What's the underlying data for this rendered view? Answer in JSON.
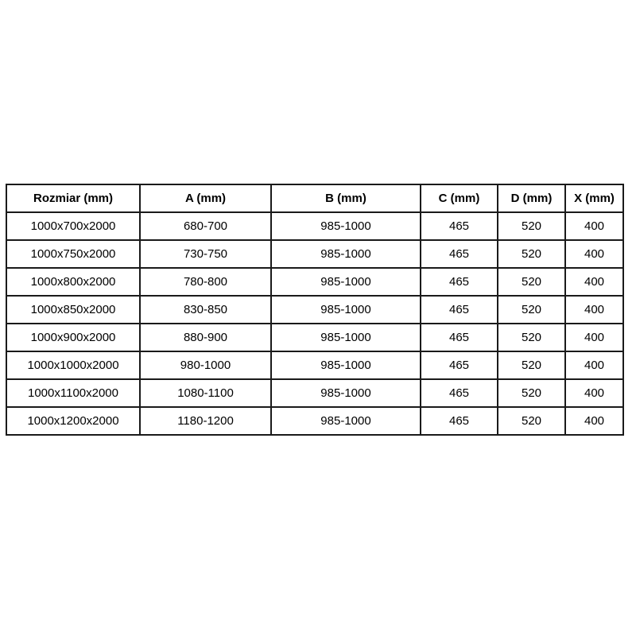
{
  "page": {
    "background_color": "#ffffff",
    "text_color": "#000000",
    "border_color": "#1a1a1a"
  },
  "table": {
    "columns": [
      "Rozmiar (mm)",
      "A (mm)",
      "B (mm)",
      "C (mm)",
      "D (mm)",
      "X (mm)"
    ],
    "rows": [
      [
        "1000x700x2000",
        "680-700",
        "985-1000",
        "465",
        "520",
        "400"
      ],
      [
        "1000x750x2000",
        "730-750",
        "985-1000",
        "465",
        "520",
        "400"
      ],
      [
        "1000x800x2000",
        "780-800",
        "985-1000",
        "465",
        "520",
        "400"
      ],
      [
        "1000x850x2000",
        "830-850",
        "985-1000",
        "465",
        "520",
        "400"
      ],
      [
        "1000x900x2000",
        "880-900",
        "985-1000",
        "465",
        "520",
        "400"
      ],
      [
        "1000x1000x2000",
        "980-1000",
        "985-1000",
        "465",
        "520",
        "400"
      ],
      [
        "1000x1100x2000",
        "1080-1100",
        "985-1000",
        "465",
        "520",
        "400"
      ],
      [
        "1000x1200x2000",
        "1180-1200",
        "985-1000",
        "465",
        "520",
        "400"
      ]
    ]
  },
  "chart_data": {
    "type": "table",
    "title": "",
    "columns": [
      "Rozmiar (mm)",
      "A (mm)",
      "B (mm)",
      "C (mm)",
      "D (mm)",
      "X (mm)"
    ],
    "rows": [
      [
        "1000x700x2000",
        "680-700",
        "985-1000",
        "465",
        "520",
        "400"
      ],
      [
        "1000x750x2000",
        "730-750",
        "985-1000",
        "465",
        "520",
        "400"
      ],
      [
        "1000x800x2000",
        "780-800",
        "985-1000",
        "465",
        "520",
        "400"
      ],
      [
        "1000x850x2000",
        "830-850",
        "985-1000",
        "465",
        "520",
        "400"
      ],
      [
        "1000x900x2000",
        "880-900",
        "985-1000",
        "465",
        "520",
        "400"
      ],
      [
        "1000x1000x2000",
        "980-1000",
        "985-1000",
        "465",
        "520",
        "400"
      ],
      [
        "1000x1100x2000",
        "1080-1100",
        "985-1000",
        "465",
        "520",
        "400"
      ],
      [
        "1000x1200x2000",
        "1180-1200",
        "985-1000",
        "465",
        "520",
        "400"
      ]
    ]
  }
}
